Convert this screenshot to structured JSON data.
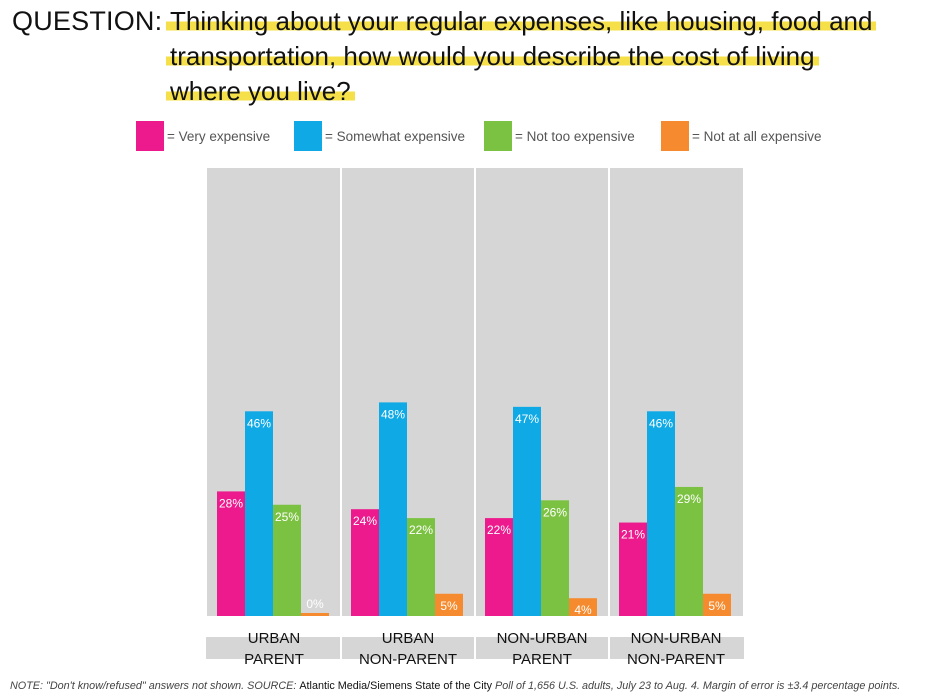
{
  "question": {
    "label": "QUESTION:",
    "line1": "Thinking about your regular expenses, like housing, food and",
    "line2": "transportation, how would you describe the cost of living",
    "line3": "where you live?"
  },
  "colors": {
    "very": "#ec1a8c",
    "somewhat": "#0fa9e6",
    "not_too": "#7cc242",
    "not_at_all": "#f58b2e",
    "panel": "#d6d6d6",
    "label_band": "#d6d6d6"
  },
  "legend": [
    {
      "key": "very",
      "label": "= Very expensive"
    },
    {
      "key": "somewhat",
      "label": "= Somewhat expensive"
    },
    {
      "key": "not_too",
      "label": "= Not too expensive"
    },
    {
      "key": "not_at_all",
      "label": "= Not at all expensive"
    }
  ],
  "chart_data": {
    "type": "bar",
    "title": "Thinking about your regular expenses, like housing, food and transportation, how would you describe the cost of living where you live?",
    "categories": [
      "URBAN PARENT",
      "URBAN NON-PARENT",
      "NON-URBAN PARENT",
      "NON-URBAN NON-PARENT"
    ],
    "category_lines": [
      [
        "URBAN",
        "PARENT"
      ],
      [
        "URBAN",
        "NON-PARENT"
      ],
      [
        "NON-URBAN",
        "PARENT"
      ],
      [
        "NON-URBAN",
        "NON-PARENT"
      ]
    ],
    "series": [
      {
        "name": "Very expensive",
        "key": "very",
        "values": [
          28,
          24,
          22,
          21
        ],
        "labels": [
          "28%",
          "24%",
          "22%",
          "21%"
        ]
      },
      {
        "name": "Somewhat expensive",
        "key": "somewhat",
        "values": [
          46,
          48,
          47,
          46
        ],
        "labels": [
          "46%",
          "48%",
          "47%",
          "46%"
        ]
      },
      {
        "name": "Not too expensive",
        "key": "not_too",
        "values": [
          25,
          22,
          26,
          29
        ],
        "labels": [
          "25%",
          "22%",
          "26%",
          "29%"
        ]
      },
      {
        "name": "Not at all expensive",
        "key": "not_at_all",
        "values": [
          0,
          5,
          4,
          5
        ],
        "labels": [
          "0%",
          "5%",
          "4%",
          "5%"
        ]
      }
    ],
    "xlabel": "",
    "ylabel": "",
    "ylim": [
      0,
      100
    ],
    "grid": false,
    "legend_position": "top"
  },
  "note": {
    "prefix": "NOTE: \"Don't know/refused\" answers not shown. SOURCE: ",
    "source": "Atlantic Media/Siemens State of the City",
    "suffix": " Poll of 1,656 U.S. adults, July 23 to Aug. 4. Margin of error is ±3.4 percentage points."
  }
}
